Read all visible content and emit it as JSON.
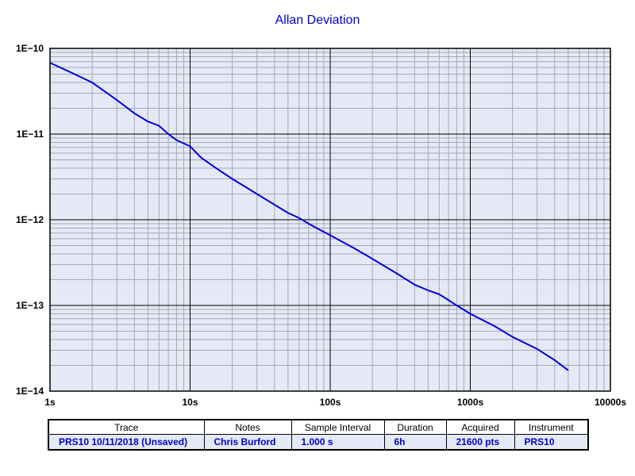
{
  "chart_data": {
    "type": "line",
    "title": "Allan Deviation",
    "xlabel": "",
    "ylabel": "",
    "x_scale": "log",
    "y_scale": "log",
    "xlim": [
      1,
      10000
    ],
    "ylim": [
      1e-14,
      1e-10
    ],
    "x_tick_labels": [
      "1s",
      "10s",
      "100s",
      "1000s",
      "10000s"
    ],
    "y_tick_labels": [
      "1E−10",
      "1E−11",
      "1E−12",
      "1E−13",
      "1E−14"
    ],
    "grid": true,
    "series": [
      {
        "color": "#0000e0",
        "x": [
          1,
          1.5,
          2,
          3,
          4,
          5,
          6,
          7,
          8,
          10,
          12,
          15,
          20,
          25,
          30,
          40,
          50,
          60,
          70,
          80,
          100,
          150,
          200,
          300,
          400,
          500,
          600,
          700,
          800,
          1000,
          1500,
          2000,
          3000,
          4000,
          5000
        ],
        "y": [
          6.8e-11,
          5e-11,
          4e-11,
          2.5e-11,
          1.75e-11,
          1.4e-11,
          1.25e-11,
          1e-11,
          8.5e-12,
          7.2e-12,
          5.3e-12,
          4.1e-12,
          3e-12,
          2.4e-12,
          2e-12,
          1.5e-12,
          1.2e-12,
          1.05e-12,
          9e-13,
          8e-13,
          6.6e-13,
          4.6e-13,
          3.5e-13,
          2.35e-13,
          1.75e-13,
          1.5e-13,
          1.35e-13,
          1.15e-13,
          1e-13,
          8e-14,
          5.7e-14,
          4.3e-14,
          3.1e-14,
          2.3e-14,
          1.75e-14
        ]
      }
    ]
  },
  "info_table": {
    "headers": [
      "Trace",
      "Notes",
      "Sample Interval",
      "Duration",
      "Acquired",
      "Instrument"
    ],
    "row": [
      "PRS10 10/11/2018 (Unsaved)",
      "Chris Burford",
      "1.000 s",
      "6h",
      "21600 pts",
      "PRS10"
    ]
  }
}
